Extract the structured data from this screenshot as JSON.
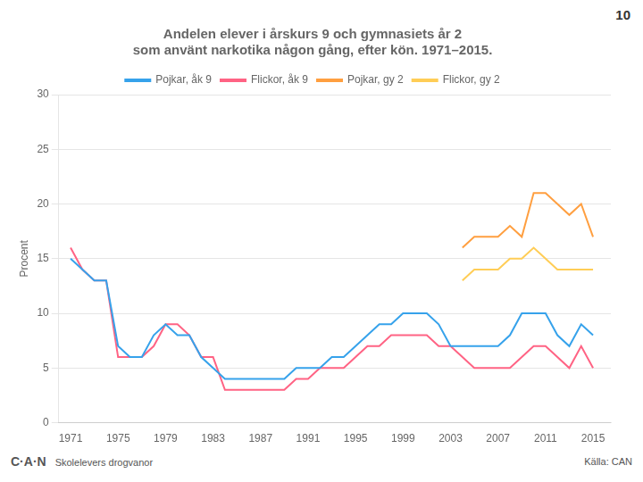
{
  "chart_data": {
    "type": "line",
    "title": "Andelen elever i årskurs 9 och gymnasiets år 2\nsom använt narkotika någon gång, efter kön. 1971–2015.",
    "y_label": "Procent",
    "annotations": [
      "10",
      "C·A·N",
      "Skolelevers drogvanor",
      "Källa: CAN"
    ],
    "series": [
      {
        "name": "Pojkar, åk 9",
        "x": [
          1971,
          1972,
          1973,
          1974,
          1975,
          1976,
          1977,
          1978,
          1979,
          1980,
          1981,
          1982,
          1983,
          1984,
          1985,
          1986,
          1987,
          1988,
          1989,
          1990,
          1991,
          1992,
          1993,
          1994,
          1995,
          1996,
          1997,
          1998,
          1999,
          2000,
          2001,
          2002,
          2003,
          2004,
          2005,
          2006,
          2007,
          2008,
          2009,
          2010,
          2011,
          2012,
          2013,
          2014,
          2015
        ],
        "values": [
          15,
          14,
          13,
          13,
          7,
          6,
          6,
          8,
          9,
          8,
          8,
          6,
          5,
          4,
          4,
          4,
          4,
          4,
          4,
          5,
          5,
          5,
          6,
          6,
          7,
          8,
          9,
          9,
          10,
          10,
          10,
          9,
          7,
          7,
          7,
          7,
          7,
          8,
          10,
          10,
          10,
          8,
          7,
          9,
          8
        ]
      },
      {
        "name": "Flickor, åk 9",
        "x": [
          1971,
          1972,
          1973,
          1974,
          1975,
          1976,
          1977,
          1978,
          1979,
          1980,
          1981,
          1982,
          1983,
          1984,
          1985,
          1986,
          1987,
          1988,
          1989,
          1990,
          1991,
          1992,
          1993,
          1994,
          1995,
          1996,
          1997,
          1998,
          1999,
          2000,
          2001,
          2002,
          2003,
          2004,
          2005,
          2006,
          2007,
          2008,
          2009,
          2010,
          2011,
          2012,
          2013,
          2014,
          2015
        ],
        "values": [
          16,
          14,
          13,
          13,
          6,
          6,
          6,
          7,
          9,
          9,
          8,
          6,
          6,
          3,
          3,
          3,
          3,
          3,
          3,
          4,
          4,
          5,
          5,
          5,
          6,
          7,
          7,
          8,
          8,
          8,
          8,
          7,
          7,
          6,
          5,
          5,
          5,
          5,
          6,
          7,
          7,
          6,
          5,
          7,
          5
        ]
      },
      {
        "name": "Pojkar, gy 2",
        "x": [
          2004,
          2005,
          2006,
          2007,
          2008,
          2009,
          2010,
          2011,
          2012,
          2013,
          2014,
          2015
        ],
        "values": [
          16,
          17,
          17,
          17,
          18,
          17,
          21,
          21,
          20,
          19,
          20,
          17
        ]
      },
      {
        "name": "Flickor, gy 2",
        "x": [
          2004,
          2005,
          2006,
          2007,
          2008,
          2009,
          2010,
          2011,
          2012,
          2013,
          2014,
          2015
        ],
        "values": [
          13,
          14,
          14,
          14,
          15,
          15,
          16,
          15,
          14,
          14,
          14,
          14
        ]
      }
    ],
    "xlim": [
      1970,
      2016.5
    ],
    "xticks": [
      1971,
      1975,
      1979,
      1983,
      1987,
      1991,
      1995,
      1999,
      2003,
      2007,
      2011,
      2015
    ],
    "ylim": [
      0,
      30
    ],
    "yticks": [
      0,
      5,
      10,
      15,
      20,
      25,
      30
    ],
    "grid": "y",
    "legend": "top"
  }
}
